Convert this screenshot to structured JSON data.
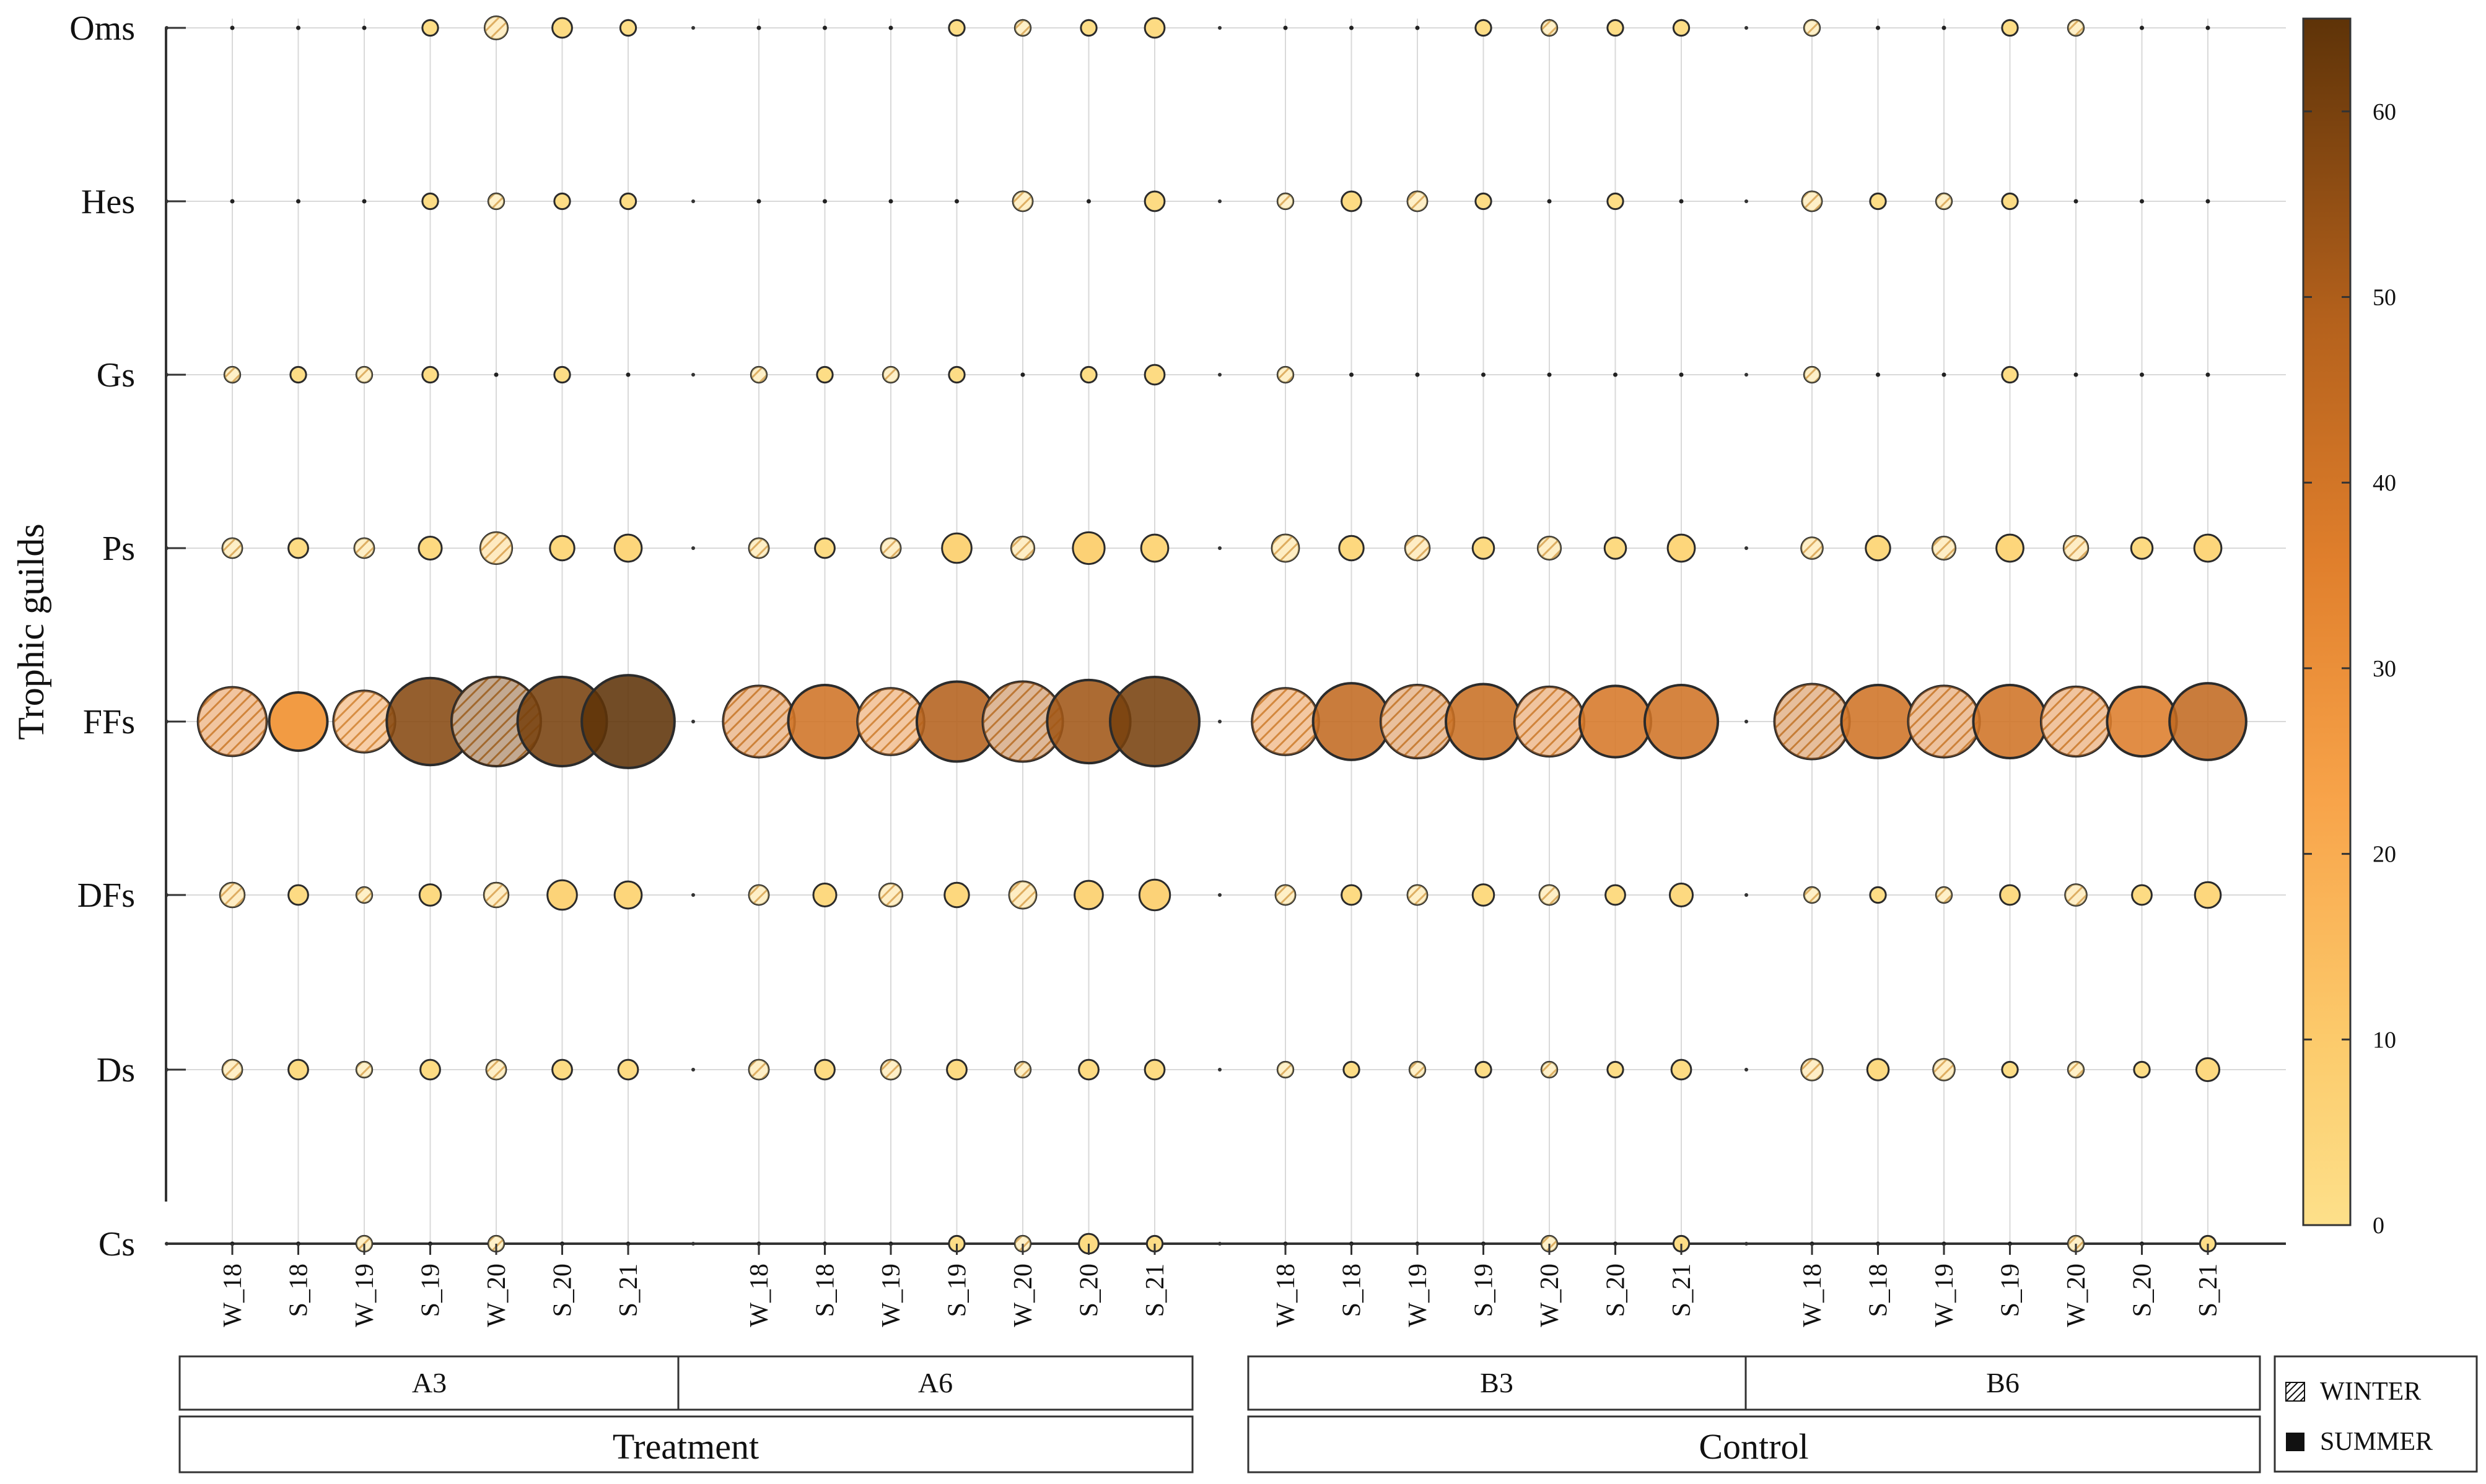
{
  "chart_data": {
    "type": "bubble",
    "ylabel": "Trophic guilds",
    "guilds": [
      "Oms",
      "Hes",
      "Gs",
      "Ps",
      "FFs",
      "DFs",
      "Ds",
      "Cs"
    ],
    "sites": [
      "A3",
      "A6",
      "B3",
      "B6"
    ],
    "seasons": [
      "W_18",
      "S_18",
      "W_19",
      "S_19",
      "W_20",
      "S_20",
      "S_21"
    ],
    "groups": [
      {
        "label": "Treatment",
        "sites": [
          "A3",
          "A6"
        ]
      },
      {
        "label": "Control",
        "sites": [
          "B3",
          "B6"
        ]
      }
    ],
    "legend": [
      {
        "label": "WINTER",
        "pattern": "hatched"
      },
      {
        "label": "SUMMER",
        "pattern": "solid"
      }
    ],
    "colorbar": {
      "min": 0,
      "max": 65,
      "ticks": [
        0,
        10,
        20,
        30,
        40,
        50,
        60
      ]
    },
    "size_scale_note": "bubble area and colour both encode the guild value",
    "values": {
      "A3": {
        "Oms": [
          0.2,
          0.2,
          0.2,
          1.5,
          3.5,
          2.5,
          1.5
        ],
        "Hes": [
          0.2,
          0.2,
          0.2,
          1.5,
          1.5,
          1.5,
          1.5
        ],
        "Gs": [
          1.5,
          1.5,
          1.5,
          1.5,
          0.2,
          1.5,
          0.2
        ],
        "Ps": [
          2.5,
          2.5,
          2.5,
          3.5,
          7,
          4,
          5
        ],
        "FFs": [
          35,
          25,
          28,
          57,
          60,
          60,
          65
        ],
        "DFs": [
          4,
          2.5,
          1.5,
          3,
          4,
          6,
          5
        ],
        "Ds": [
          2.5,
          2.5,
          1.5,
          2.5,
          2.5,
          2.5,
          2.5
        ],
        "Cs": [
          0.2,
          0.2,
          1.5,
          0.2,
          1.5,
          0.2,
          0.2
        ]
      },
      "A6": {
        "Oms": [
          0.2,
          0.2,
          0.2,
          1.5,
          1.5,
          1.5,
          2.5
        ],
        "Hes": [
          0.2,
          0.2,
          0.2,
          0.2,
          2.5,
          0.2,
          2.5
        ],
        "Gs": [
          1.5,
          1.5,
          1.5,
          1.5,
          0.2,
          1.5,
          2.5
        ],
        "Ps": [
          2.5,
          2.5,
          2.5,
          6,
          3.5,
          7,
          5
        ],
        "FFs": [
          38,
          40,
          33,
          48,
          48,
          52,
          60
        ],
        "DFs": [
          2.5,
          3.5,
          3.5,
          4,
          5,
          5.5,
          6.5
        ],
        "Ds": [
          2.5,
          2.5,
          2.5,
          2.5,
          1.5,
          2.5,
          2.5
        ],
        "Cs": [
          0.2,
          0.2,
          0.2,
          1.5,
          1.5,
          2.5,
          1.5
        ]
      },
      "B3": {
        "Oms": [
          0.2,
          0.2,
          0.2,
          1.5,
          1.5,
          1.5,
          1.5
        ],
        "Hes": [
          1.5,
          2.5,
          2.5,
          1.5,
          0.2,
          1.5,
          0.2
        ],
        "Gs": [
          1.5,
          0.2,
          0.2,
          0.2,
          0.2,
          0.2,
          0.2
        ],
        "Ps": [
          5,
          4,
          4,
          3,
          3.5,
          3,
          5
        ],
        "FFs": [
          33,
          44,
          40,
          42,
          36,
          38,
          40
        ],
        "DFs": [
          2.5,
          2.5,
          2.5,
          3,
          2.5,
          2.5,
          3.5
        ],
        "Ds": [
          1.5,
          1.5,
          1.5,
          1.5,
          1.5,
          1.5,
          2.5
        ],
        "Cs": [
          0.2,
          0.2,
          0.2,
          0.2,
          1.5,
          0.2,
          1.5
        ]
      },
      "B6": {
        "Oms": [
          1.5,
          0.2,
          0.2,
          1.5,
          1.5,
          0.2,
          0.2
        ],
        "Hes": [
          2.5,
          1.5,
          1.5,
          1.5,
          0.2,
          0.2,
          0.2
        ],
        "Gs": [
          1.5,
          0.2,
          0.2,
          1.5,
          0.2,
          0.2,
          0.2
        ],
        "Ps": [
          3,
          4,
          3.5,
          5,
          4,
          3,
          5
        ],
        "FFs": [
          42,
          40,
          38,
          40,
          36,
          36,
          44
        ],
        "DFs": [
          1.5,
          1.5,
          1.5,
          2.5,
          3,
          2.5,
          4.5
        ],
        "Ds": [
          3,
          3,
          3,
          1.5,
          1.5,
          1.5,
          3.5
        ],
        "Cs": [
          0.2,
          0.2,
          0.2,
          0.2,
          1.5,
          0.2,
          1.5
        ]
      }
    }
  }
}
